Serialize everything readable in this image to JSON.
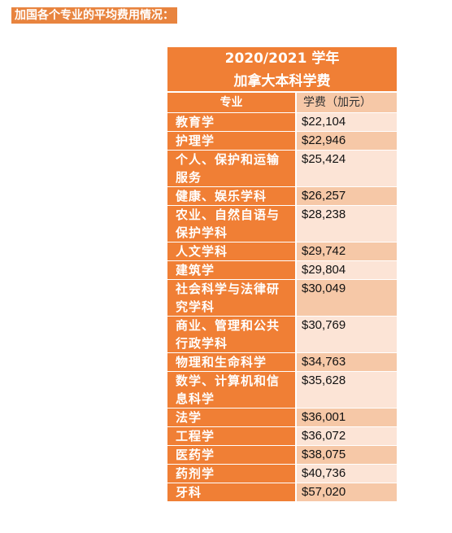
{
  "heading": "加国各个专业的平均费用情况：",
  "table": {
    "title_line1": "2020/2021 学年",
    "title_line2": "加拿大本科学费",
    "col_major": "专业",
    "col_fee": "学费（加元）",
    "rows": [
      {
        "name": "教育学",
        "fee": "$22,104",
        "shade": "light"
      },
      {
        "name": "护理学",
        "fee": "$22,946",
        "shade": "dark"
      },
      {
        "name": "个人、保护和运输服务",
        "fee": "$25,424",
        "shade": "light"
      },
      {
        "name": "健康、娱乐学科",
        "fee": "$26,257",
        "shade": "dark"
      },
      {
        "name": "农业、自然自语与保护学科",
        "fee": "$28,238",
        "shade": "light"
      },
      {
        "name": "人文学科",
        "fee": "$29,742",
        "shade": "dark"
      },
      {
        "name": "建筑学",
        "fee": "$29,804",
        "shade": "light"
      },
      {
        "name": "社会科学与法律研究学科",
        "fee": "$30,049",
        "shade": "dark"
      },
      {
        "name": "商业、管理和公共行政学科",
        "fee": "$30,769",
        "shade": "light"
      },
      {
        "name": "物理和生命科学",
        "fee": "$34,763",
        "shade": "dark"
      },
      {
        "name": "数学、计算机和信息科学",
        "fee": "$35,628",
        "shade": "light"
      },
      {
        "name": "法学",
        "fee": "$36,001",
        "shade": "dark"
      },
      {
        "name": "工程学",
        "fee": "$36,072",
        "shade": "light"
      },
      {
        "name": "医药学",
        "fee": "$38,075",
        "shade": "dark"
      },
      {
        "name": "药剂学",
        "fee": "$40,736",
        "shade": "light"
      },
      {
        "name": "牙科",
        "fee": "$57,020",
        "shade": "dark"
      }
    ]
  }
}
